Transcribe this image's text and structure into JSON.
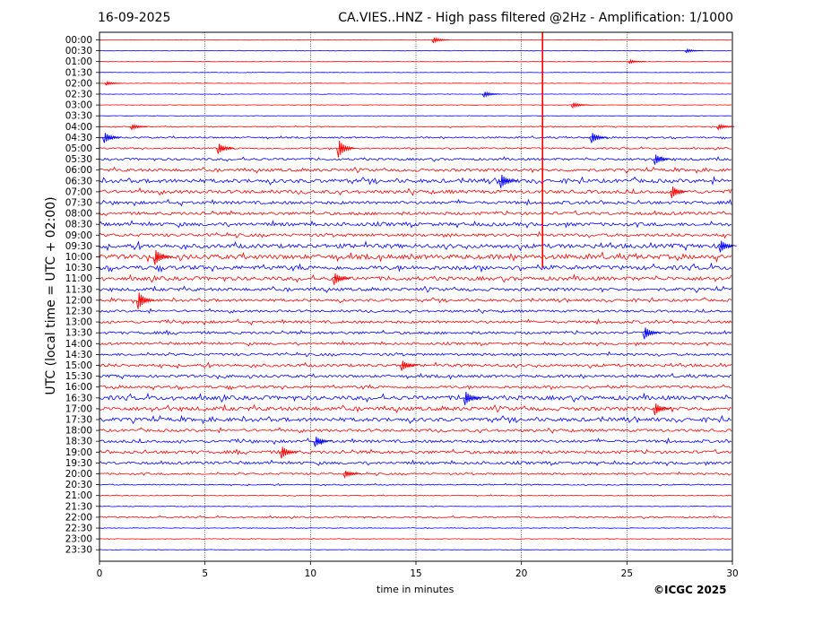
{
  "header": {
    "date": "16-09-2025",
    "title": "CA.VIES..HNZ - High pass filtered @2Hz - Amplification: 1/1000"
  },
  "footer": {
    "copyright": "©ICGC 2025"
  },
  "colors": {
    "odd_trace": "#ff0000",
    "even_trace": "#0000ff",
    "axis": "#000000",
    "grid": "#000000"
  },
  "chart_data": {
    "type": "line",
    "title": "CA.VIES..HNZ - High pass filtered @2Hz - Amplification: 1/1000",
    "xlabel": "time in minutes",
    "ylabel": "UTC (local time = UTC + 02:00)",
    "xlim": [
      0,
      30
    ],
    "x_ticks": [
      0,
      5,
      10,
      15,
      20,
      25,
      30
    ],
    "grid": "vertical dotted lines at 5-minute intervals",
    "row_labels": [
      "00:00",
      "00:30",
      "01:00",
      "01:30",
      "02:00",
      "02:30",
      "03:00",
      "03:30",
      "04:00",
      "04:30",
      "05:00",
      "05:30",
      "06:00",
      "06:30",
      "07:00",
      "07:30",
      "08:00",
      "08:30",
      "09:00",
      "09:30",
      "10:00",
      "10:30",
      "11:00",
      "11:30",
      "12:00",
      "12:30",
      "13:00",
      "13:30",
      "14:00",
      "14:30",
      "15:00",
      "15:30",
      "16:00",
      "16:30",
      "17:00",
      "17:30",
      "18:00",
      "18:30",
      "19:00",
      "19:30",
      "20:00",
      "20:30",
      "21:00",
      "21:30",
      "22:00",
      "22:30",
      "23:00",
      "23:30"
    ],
    "row_colors": "alternating red (even index) and blue (odd index)",
    "noise_level": [
      0.2,
      0.2,
      0.2,
      0.2,
      0.2,
      0.2,
      0.2,
      0.2,
      0.5,
      0.8,
      0.8,
      1.2,
      1.5,
      2.0,
      1.8,
      1.6,
      1.6,
      1.8,
      1.6,
      2.2,
      2.4,
      2.2,
      2.0,
      1.6,
      1.4,
      1.2,
      1.4,
      1.4,
      1.2,
      1.3,
      1.5,
      1.4,
      1.4,
      2.2,
      2.0,
      2.0,
      1.4,
      1.5,
      1.6,
      1.4,
      1.0,
      0.6,
      0.4,
      0.3,
      0.8,
      0.3,
      0.3,
      0.2
    ],
    "events": [
      {
        "row": 0,
        "minute": 16.0,
        "amplitude": 3
      },
      {
        "row": 0,
        "minute": 21.0,
        "amplitude": 40,
        "note": "large spike spanning rows 00:00-10:30"
      },
      {
        "row": 1,
        "minute": 28.0,
        "amplitude": 2
      },
      {
        "row": 2,
        "minute": 25.3,
        "amplitude": 2
      },
      {
        "row": 4,
        "minute": 0.5,
        "amplitude": 2
      },
      {
        "row": 5,
        "minute": 18.4,
        "amplitude": 3
      },
      {
        "row": 6,
        "minute": 22.6,
        "amplitude": 3
      },
      {
        "row": 8,
        "minute": 1.7,
        "amplitude": 3
      },
      {
        "row": 8,
        "minute": 29.5,
        "amplitude": 3
      },
      {
        "row": 9,
        "minute": 0.4,
        "amplitude": 6
      },
      {
        "row": 9,
        "minute": 23.5,
        "amplitude": 6
      },
      {
        "row": 10,
        "minute": 5.8,
        "amplitude": 6
      },
      {
        "row": 10,
        "minute": 11.5,
        "amplitude": 10
      },
      {
        "row": 11,
        "minute": 26.5,
        "amplitude": 6
      },
      {
        "row": 13,
        "minute": 19.2,
        "amplitude": 8
      },
      {
        "row": 14,
        "minute": 27.3,
        "amplitude": 7
      },
      {
        "row": 19,
        "minute": 29.6,
        "amplitude": 7
      },
      {
        "row": 20,
        "minute": 2.8,
        "amplitude": 9
      },
      {
        "row": 22,
        "minute": 11.3,
        "amplitude": 7
      },
      {
        "row": 24,
        "minute": 2.0,
        "amplitude": 10
      },
      {
        "row": 27,
        "minute": 26.0,
        "amplitude": 7
      },
      {
        "row": 30,
        "minute": 14.5,
        "amplitude": 6
      },
      {
        "row": 33,
        "minute": 17.5,
        "amplitude": 8
      },
      {
        "row": 34,
        "minute": 26.5,
        "amplitude": 7
      },
      {
        "row": 37,
        "minute": 10.4,
        "amplitude": 6
      },
      {
        "row": 38,
        "minute": 8.8,
        "amplitude": 7
      },
      {
        "row": 40,
        "minute": 11.8,
        "amplitude": 4
      }
    ]
  }
}
